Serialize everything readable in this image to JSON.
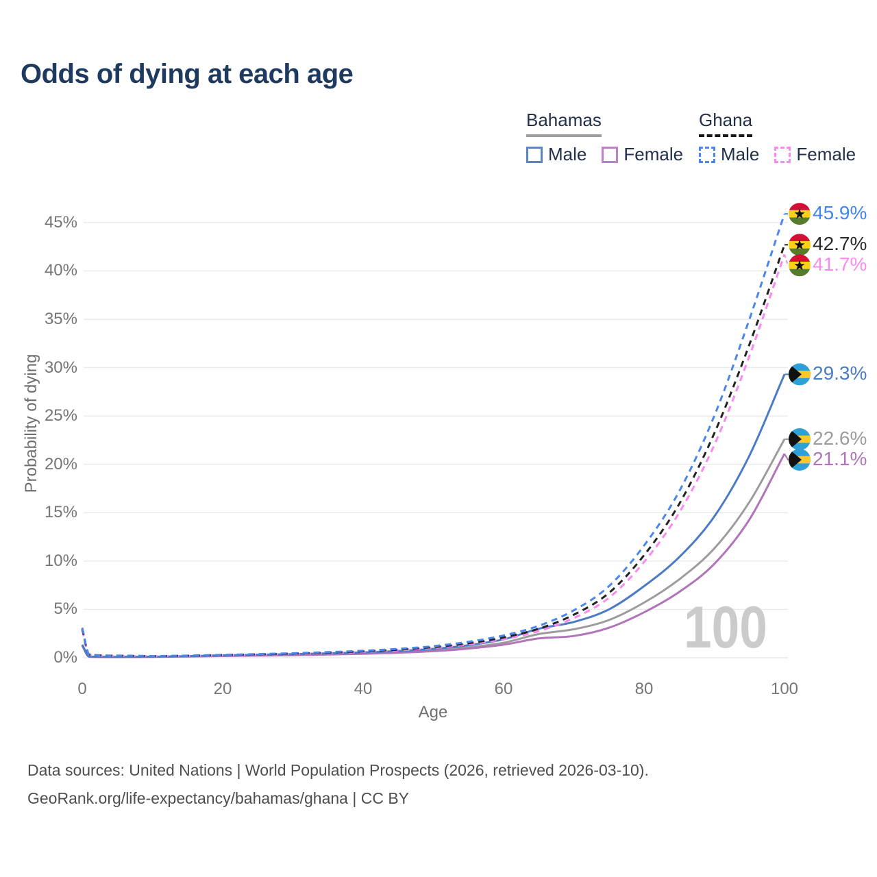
{
  "title": "Odds of dying at each age",
  "watermark": "100",
  "legend": {
    "groups": [
      {
        "label": "Bahamas",
        "line_style": "solid",
        "underline_color": "#9e9e9e",
        "items": [
          {
            "label": "Male",
            "color": "#5b84c4"
          },
          {
            "label": "Female",
            "color": "#c07fc7"
          }
        ]
      },
      {
        "label": "Ghana",
        "line_style": "dashed",
        "underline_color": "#1a1a1a",
        "items": [
          {
            "label": "Male",
            "color": "#4b86ec"
          },
          {
            "label": "Female",
            "color": "#f988f0"
          }
        ]
      }
    ]
  },
  "flags": {
    "ghana": {
      "stripes": [
        "#d21034",
        "#fcd116",
        "#567d2e"
      ],
      "star": "#111111"
    },
    "bahamas": {
      "aqua": "#2da0d8",
      "gold": "#ffc72c",
      "chevron": "#111111"
    }
  },
  "chart_data": {
    "type": "line",
    "title": "Odds of dying at each age",
    "xlabel": "Age",
    "ylabel": "Probability of dying",
    "xlim": [
      0,
      100
    ],
    "ylim_pct": [
      0,
      47
    ],
    "x_ticks": [
      0,
      20,
      40,
      60,
      80,
      100
    ],
    "y_ticks_pct": [
      0,
      5,
      10,
      15,
      20,
      25,
      30,
      35,
      40,
      45
    ],
    "grid": true,
    "legend_position": "top-right",
    "ages": [
      0,
      1,
      5,
      10,
      15,
      20,
      25,
      30,
      35,
      40,
      45,
      50,
      55,
      60,
      65,
      70,
      75,
      80,
      85,
      90,
      95,
      100
    ],
    "series": [
      {
        "id": "bahamas-male",
        "name": "Bahamas Male",
        "flag": "bahamas",
        "line": "solid",
        "color": "#4a7bc4",
        "end_label": "29.3%",
        "label_color": "#4a7bc4",
        "values_pct": [
          1.35,
          0.12,
          0.09,
          0.11,
          0.17,
          0.25,
          0.31,
          0.37,
          0.45,
          0.55,
          0.7,
          0.92,
          1.3,
          1.9,
          3.0,
          3.7,
          5.0,
          7.4,
          10.4,
          14.6,
          20.9,
          29.3
        ]
      },
      {
        "id": "bahamas-female",
        "name": "Bahamas Female",
        "flag": "bahamas",
        "line": "solid",
        "color": "#b173ba",
        "end_label": "21.1%",
        "label_color": "#b173ba",
        "values_pct": [
          1.25,
          0.1,
          0.07,
          0.09,
          0.13,
          0.18,
          0.22,
          0.27,
          0.33,
          0.41,
          0.52,
          0.68,
          0.95,
          1.35,
          2.0,
          2.25,
          3.1,
          4.7,
          6.8,
          9.7,
          14.3,
          21.1
        ]
      },
      {
        "id": "bahamas-combined",
        "name": "Bahamas (combined)",
        "flag": "bahamas",
        "line": "solid",
        "color": "#9c9c9c",
        "end_label": "22.6%",
        "label_color": "#9c9c9c",
        "values_pct": [
          1.3,
          0.11,
          0.08,
          0.1,
          0.15,
          0.21,
          0.26,
          0.31,
          0.38,
          0.47,
          0.6,
          0.78,
          1.08,
          1.55,
          2.45,
          2.95,
          3.9,
          5.7,
          8.1,
          11.3,
          16.1,
          22.6
        ]
      },
      {
        "id": "ghana-male",
        "name": "Ghana Male",
        "flag": "ghana",
        "line": "dashed",
        "color": "#4b86ec",
        "end_label": "45.9%",
        "label_color": "#4186f0",
        "values_pct": [
          3.1,
          0.35,
          0.22,
          0.18,
          0.22,
          0.3,
          0.38,
          0.47,
          0.58,
          0.72,
          0.92,
          1.2,
          1.65,
          2.3,
          3.3,
          4.9,
          7.4,
          11.6,
          17.2,
          25.0,
          35.0,
          45.9
        ]
      },
      {
        "id": "ghana-female",
        "name": "Ghana Female",
        "flag": "ghana",
        "line": "dashed",
        "color": "#f988f0",
        "end_label": "41.7%",
        "label_color": "#f98bef",
        "values_pct": [
          2.85,
          0.31,
          0.2,
          0.16,
          0.19,
          0.25,
          0.31,
          0.39,
          0.48,
          0.6,
          0.77,
          1.0,
          1.38,
          1.92,
          2.75,
          4.1,
          6.2,
          9.9,
          15.0,
          22.0,
          31.2,
          41.7
        ]
      },
      {
        "id": "ghana-combined",
        "name": "Ghana (combined)",
        "flag": "ghana",
        "line": "dashed",
        "color": "#222222",
        "end_label": "42.7%",
        "label_color": "#2b2b2b",
        "values_pct": [
          3.0,
          0.33,
          0.21,
          0.17,
          0.21,
          0.28,
          0.35,
          0.43,
          0.53,
          0.66,
          0.84,
          1.1,
          1.5,
          2.1,
          3.0,
          4.45,
          6.7,
          10.6,
          15.9,
          23.2,
          32.4,
          42.7
        ]
      }
    ]
  },
  "footer": {
    "line1": "Data sources: United Nations | World Population Prospects (2026, retrieved 2026-03-10).",
    "line2": "GeoRank.org/life-expectancy/bahamas/ghana | CC BY"
  }
}
